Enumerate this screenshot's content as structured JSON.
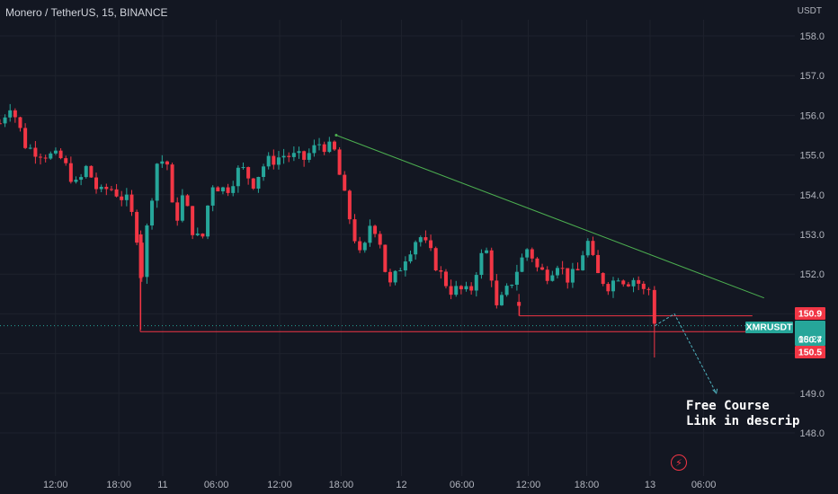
{
  "header": {
    "title": "Monero / TetherUS, 15, BINANCE",
    "unit": "USDT"
  },
  "annotation": {
    "line1": "Free Course",
    "line2": "Link in descrip"
  },
  "colors": {
    "background": "#131722",
    "up": "#26a69a",
    "down": "#f23645",
    "trendline": "#4caf50",
    "ticker_label": "#26a69a",
    "projection": "#4fb3bf"
  },
  "icons": {
    "lightning": "lightning-icon"
  },
  "chart_data": {
    "type": "candlestick",
    "symbol": "XMRUSDT",
    "ylim": [
      147.6,
      158.5
    ],
    "y_ticks": [
      148.0,
      149.0,
      150.0,
      151.0,
      152.0,
      153.0,
      154.0,
      155.0,
      156.0,
      157.0,
      158.0
    ],
    "x_tick_labels": [
      "12:00",
      "18:00",
      "11",
      "06:00",
      "12:00",
      "18:00",
      "12",
      "06:00",
      "12:00",
      "18:00",
      "13",
      "06:00"
    ],
    "x_tick_values": [
      8,
      14.5,
      19,
      24.5,
      31,
      37.3,
      43.5,
      49.7,
      56.5,
      62.5,
      69,
      74.5
    ],
    "xlim": [
      2.3,
      79.5
    ],
    "grid": true,
    "price_labels": [
      {
        "name": "resistance",
        "value": "150.9"
      },
      {
        "name": "current",
        "value": "150.7",
        "symbol": "XMRUSDT",
        "countdown": "08:24"
      },
      {
        "name": "support",
        "value": "150.5"
      }
    ],
    "trendline": {
      "from": [
        36.8,
        155.5
      ],
      "to": [
        80.7,
        151.4
      ]
    },
    "horizontal_levels": [
      {
        "from_x": 16.7,
        "to_x": 79.5,
        "y": 150.55
      },
      {
        "from_x": 55.6,
        "to_x": 79.5,
        "y": 150.95
      }
    ],
    "projection": [
      [
        69.5,
        150.7
      ],
      [
        71.5,
        151.0
      ],
      [
        75.8,
        149.0
      ]
    ],
    "keypoints": [
      [
        2.3,
        155.8
      ],
      [
        3.4,
        156.3
      ],
      [
        5.0,
        155.2
      ],
      [
        7.2,
        155.0
      ],
      [
        8.6,
        154.9
      ],
      [
        10.2,
        154.2
      ],
      [
        11.2,
        154.7
      ],
      [
        12.5,
        154.0
      ],
      [
        13.5,
        154.2
      ],
      [
        14.5,
        154.0
      ],
      [
        15.5,
        153.8
      ],
      [
        16.5,
        152.8
      ],
      [
        16.8,
        151.9
      ],
      [
        17.5,
        153.4
      ],
      [
        18.4,
        154.8
      ],
      [
        19.4,
        154.9
      ],
      [
        20.2,
        153.2
      ],
      [
        21.1,
        154.0
      ],
      [
        22.2,
        153.0
      ],
      [
        23.0,
        152.8
      ],
      [
        24.0,
        154.3
      ],
      [
        25.5,
        154.1
      ],
      [
        27.0,
        154.7
      ],
      [
        28.3,
        154.3
      ],
      [
        29.5,
        154.8
      ],
      [
        31.5,
        155.0
      ],
      [
        33.5,
        154.9
      ],
      [
        35.1,
        155.3
      ],
      [
        36.6,
        155.1
      ],
      [
        37.4,
        154.2
      ],
      [
        38.5,
        153.1
      ],
      [
        39.4,
        152.3
      ],
      [
        40.4,
        153.4
      ],
      [
        41.5,
        152.7
      ],
      [
        42.1,
        151.6
      ],
      [
        43.0,
        152.0
      ],
      [
        44.0,
        152.5
      ],
      [
        45.3,
        153.0
      ],
      [
        46.5,
        152.5
      ],
      [
        47.5,
        152.0
      ],
      [
        48.5,
        151.6
      ],
      [
        49.5,
        151.6
      ],
      [
        50.5,
        151.5
      ],
      [
        51.5,
        152.4
      ],
      [
        52.4,
        152.6
      ],
      [
        53.2,
        151.1
      ],
      [
        54.6,
        151.7
      ],
      [
        55.5,
        152.2
      ],
      [
        56.5,
        152.7
      ],
      [
        57.5,
        152.1
      ],
      [
        58.5,
        152.0
      ],
      [
        59.5,
        152.3
      ],
      [
        60.5,
        151.9
      ],
      [
        61.5,
        152.0
      ],
      [
        62.5,
        152.9
      ],
      [
        63.5,
        152.0
      ],
      [
        64.8,
        151.7
      ],
      [
        65.8,
        152.0
      ],
      [
        66.5,
        151.8
      ],
      [
        67.5,
        151.9
      ],
      [
        68.5,
        151.5
      ],
      [
        69.1,
        151.7
      ],
      [
        69.5,
        150.8
      ]
    ],
    "last_candle": {
      "x": 69.45,
      "open": 151.6,
      "high": 151.7,
      "low": 149.9,
      "close": 150.75
    }
  }
}
